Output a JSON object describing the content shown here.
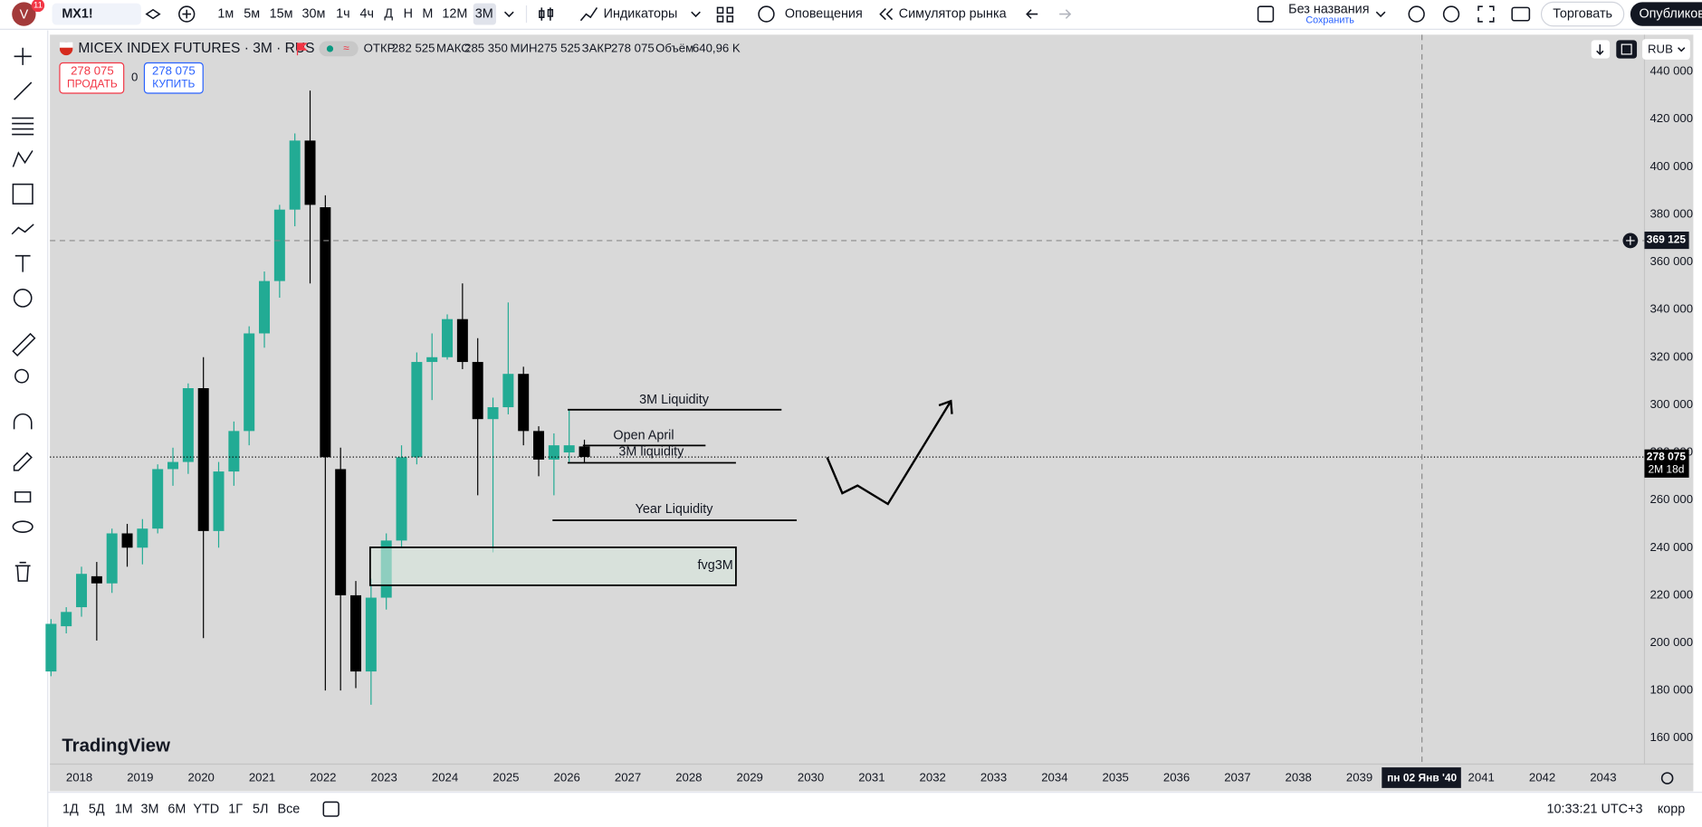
{
  "toolbar": {
    "badge": "11",
    "symbol": "MX1!",
    "intervals": [
      "1м",
      "5м",
      "15м",
      "30м",
      "1ч",
      "4ч",
      "Д",
      "Н",
      "М",
      "12М",
      "3М"
    ],
    "indicators": "Индикаторы",
    "alerts": "Оповещения",
    "replay": "Симулятор рынка",
    "layout_name": "Без названия",
    "save": "Сохранить",
    "trade": "Торговать",
    "publish": "Опубликов"
  },
  "header": {
    "title": "MICEX INDEX FUTURES · 3M · RUS",
    "ohlc": [
      {
        "label": "ОТКР",
        "value": "282 525"
      },
      {
        "label": "МАКС",
        "value": "285 350"
      },
      {
        "label": "МИН",
        "value": "275 525"
      },
      {
        "label": "ЗАКР",
        "value": "278 075"
      },
      {
        "label": "Объём",
        "value": "640,96 K"
      }
    ],
    "sell_price": "278 075",
    "sell": "ПРОДАТЬ",
    "spread": "0",
    "buy_price": "278 075",
    "buy": "КУПИТЬ",
    "currency": "RUB"
  },
  "chart": {
    "up_color": "#22ab94",
    "down_color": "#000000",
    "ylim": [
      160000,
      440000
    ],
    "yticks": [
      {
        "value": 160000,
        "label": "160 000"
      },
      {
        "value": 180000,
        "label": "180 000"
      },
      {
        "value": 200000,
        "label": "200 000"
      },
      {
        "value": 220000,
        "label": "220 000"
      },
      {
        "value": 240000,
        "label": "240 000"
      },
      {
        "value": 260000,
        "label": "260 000"
      },
      {
        "value": 280000,
        "label": "280 000"
      },
      {
        "value": 300000,
        "label": "300 000"
      },
      {
        "value": 320000,
        "label": "320 000"
      },
      {
        "value": 340000,
        "label": "340 000"
      },
      {
        "value": 360000,
        "label": "360 000"
      },
      {
        "value": 380000,
        "label": "380 000"
      },
      {
        "value": 400000,
        "label": "400 000"
      },
      {
        "value": 420000,
        "label": "420 000"
      },
      {
        "value": 440000,
        "label": "440 000"
      }
    ],
    "xlabels": [
      2018,
      2019,
      2020,
      2021,
      2022,
      2023,
      2024,
      2025,
      2026,
      2027,
      2028,
      2029,
      2030,
      2031,
      2032,
      2033,
      2034,
      2035,
      2036,
      2037,
      2038,
      2039,
      null,
      2041,
      2042,
      2043
    ],
    "candles": [
      {
        "open": 188000,
        "high": 210000,
        "low": 186000,
        "close": 208000
      },
      {
        "open": 207000,
        "high": 215000,
        "low": 204000,
        "close": 213000
      },
      {
        "open": 215000,
        "high": 232000,
        "low": 211000,
        "close": 229000
      },
      {
        "open": 228000,
        "high": 234000,
        "low": 201000,
        "close": 225000
      },
      {
        "open": 225000,
        "high": 248000,
        "low": 221000,
        "close": 246000
      },
      {
        "open": 246000,
        "high": 250000,
        "low": 232000,
        "close": 240000
      },
      {
        "open": 240000,
        "high": 252000,
        "low": 233000,
        "close": 248000
      },
      {
        "open": 248000,
        "high": 275000,
        "low": 246000,
        "close": 273000
      },
      {
        "open": 273000,
        "high": 282000,
        "low": 266000,
        "close": 276000
      },
      {
        "open": 276000,
        "high": 309000,
        "low": 271000,
        "close": 307000
      },
      {
        "open": 307000,
        "high": 320000,
        "low": 202000,
        "close": 247000
      },
      {
        "open": 247000,
        "high": 276000,
        "low": 240000,
        "close": 272000
      },
      {
        "open": 272000,
        "high": 293000,
        "low": 266000,
        "close": 289000
      },
      {
        "open": 289000,
        "high": 333000,
        "low": 283000,
        "close": 330000
      },
      {
        "open": 330000,
        "high": 356000,
        "low": 324000,
        "close": 352000
      },
      {
        "open": 352000,
        "high": 384000,
        "low": 345000,
        "close": 382000
      },
      {
        "open": 382000,
        "high": 414000,
        "low": 375000,
        "close": 411000
      },
      {
        "open": 411000,
        "high": 432000,
        "low": 351000,
        "close": 384000
      },
      {
        "open": 383000,
        "high": 388000,
        "low": 180000,
        "close": 278000
      },
      {
        "open": 273000,
        "high": 282000,
        "low": 180000,
        "close": 220000
      },
      {
        "open": 220000,
        "high": 226000,
        "low": 181000,
        "close": 188000
      },
      {
        "open": 188000,
        "high": 227000,
        "low": 174000,
        "close": 219000
      },
      {
        "open": 219000,
        "high": 246000,
        "low": 214000,
        "close": 243000
      },
      {
        "open": 243000,
        "high": 283000,
        "low": 240000,
        "close": 278000
      },
      {
        "open": 278000,
        "high": 322000,
        "low": 275000,
        "close": 318000
      },
      {
        "open": 318000,
        "high": 330000,
        "low": 302000,
        "close": 320000
      },
      {
        "open": 320000,
        "high": 338000,
        "low": 319000,
        "close": 336000
      },
      {
        "open": 336000,
        "high": 351000,
        "low": 315000,
        "close": 318000
      },
      {
        "open": 318000,
        "high": 328000,
        "low": 262000,
        "close": 294000
      },
      {
        "open": 294000,
        "high": 303000,
        "low": 238000,
        "close": 299000
      },
      {
        "open": 299000,
        "high": 343000,
        "low": 296000,
        "close": 313000
      },
      {
        "open": 313000,
        "high": 316000,
        "low": 283000,
        "close": 289000
      },
      {
        "open": 289000,
        "high": 291000,
        "low": 270000,
        "close": 277000
      },
      {
        "open": 277000,
        "high": 288000,
        "low": 262000,
        "close": 283000
      },
      {
        "open": 280000,
        "high": 298000,
        "low": 276000,
        "close": 283000
      },
      {
        "open": 282525,
        "high": 285350,
        "low": 275525,
        "close": 278075
      }
    ],
    "last_price": {
      "value": 278075,
      "label": "278 075"
    },
    "countdown": "2M 18d",
    "crosshair_price": {
      "value": 369125,
      "label": "369 125"
    },
    "crosshair_date": "пн 02 Янв '40",
    "watermark": "TradingView"
  },
  "drawings": {
    "liquidity_3m_top": "3M Liquidity",
    "open_april": "Open April",
    "liquidity_3m": "3M liquidity",
    "year_liquidity": "Year Liquidity",
    "fvg": "fvg3M"
  },
  "footer": {
    "ranges": [
      "1Д",
      "5Д",
      "1М",
      "3М",
      "6М",
      "YTD",
      "1Г",
      "5Л",
      "Все"
    ],
    "clock": "10:33:21 UTC+3",
    "adjust": "корр"
  }
}
